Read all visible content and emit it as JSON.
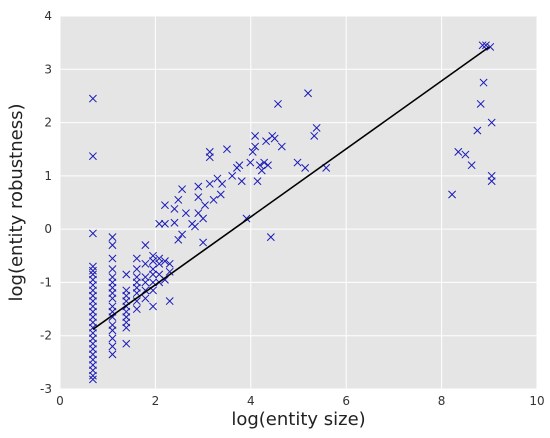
{
  "chart_data": {
    "type": "scatter",
    "xlabel": "log(entity size)",
    "ylabel": "log(entity robustness)",
    "xlim": [
      0,
      10
    ],
    "ylim": [
      -3,
      4
    ],
    "xticks": [
      "0",
      "2",
      "4",
      "6",
      "8",
      "10"
    ],
    "yticks": [
      "-3",
      "-2",
      "-1",
      "0",
      "1",
      "2",
      "3",
      "4"
    ],
    "grid": true,
    "background": "#e5e5e5",
    "marker_color": "#1a1ab8",
    "line_color": "#000000",
    "fit_line": {
      "x": [
        0.69,
        9.0
      ],
      "y": [
        -1.88,
        3.42
      ]
    },
    "points": [
      [
        0.69,
        2.45
      ],
      [
        0.69,
        1.37
      ],
      [
        0.69,
        -0.08
      ],
      [
        0.69,
        -0.7
      ],
      [
        0.69,
        -0.78
      ],
      [
        0.69,
        -0.85
      ],
      [
        0.69,
        -0.95
      ],
      [
        0.69,
        -1.05
      ],
      [
        0.69,
        -1.15
      ],
      [
        0.69,
        -1.25
      ],
      [
        0.69,
        -1.35
      ],
      [
        0.69,
        -1.45
      ],
      [
        0.69,
        -1.55
      ],
      [
        0.69,
        -1.65
      ],
      [
        0.69,
        -1.75
      ],
      [
        0.69,
        -1.85
      ],
      [
        0.69,
        -1.95
      ],
      [
        0.69,
        -2.05
      ],
      [
        0.69,
        -2.15
      ],
      [
        0.69,
        -2.25
      ],
      [
        0.69,
        -2.35
      ],
      [
        0.69,
        -2.45
      ],
      [
        0.69,
        -2.55
      ],
      [
        0.69,
        -2.65
      ],
      [
        0.69,
        -2.75
      ],
      [
        0.69,
        -2.82
      ],
      [
        1.1,
        -0.15
      ],
      [
        1.1,
        -0.3
      ],
      [
        1.1,
        -0.55
      ],
      [
        1.1,
        -0.75
      ],
      [
        1.1,
        -0.9
      ],
      [
        1.1,
        -1.0
      ],
      [
        1.1,
        -1.1
      ],
      [
        1.1,
        -1.2
      ],
      [
        1.1,
        -1.3
      ],
      [
        1.1,
        -1.45
      ],
      [
        1.1,
        -1.55
      ],
      [
        1.1,
        -1.65
      ],
      [
        1.1,
        -1.8
      ],
      [
        1.1,
        -1.9
      ],
      [
        1.1,
        -2.05
      ],
      [
        1.1,
        -2.2
      ],
      [
        1.1,
        -2.35
      ],
      [
        1.39,
        -0.85
      ],
      [
        1.39,
        -1.15
      ],
      [
        1.39,
        -1.25
      ],
      [
        1.39,
        -1.35
      ],
      [
        1.39,
        -1.45
      ],
      [
        1.39,
        -1.55
      ],
      [
        1.39,
        -1.65
      ],
      [
        1.39,
        -1.75
      ],
      [
        1.39,
        -1.85
      ],
      [
        1.39,
        -2.15
      ],
      [
        1.61,
        -0.55
      ],
      [
        1.61,
        -0.75
      ],
      [
        1.61,
        -0.9
      ],
      [
        1.61,
        -1.0
      ],
      [
        1.61,
        -1.1
      ],
      [
        1.61,
        -1.2
      ],
      [
        1.61,
        -1.35
      ],
      [
        1.61,
        -1.5
      ],
      [
        1.79,
        -0.3
      ],
      [
        1.79,
        -0.65
      ],
      [
        1.79,
        -0.9
      ],
      [
        1.79,
        -1.0
      ],
      [
        1.79,
        -1.15
      ],
      [
        1.79,
        -1.3
      ],
      [
        1.95,
        -0.5
      ],
      [
        1.95,
        -0.6
      ],
      [
        1.95,
        -0.75
      ],
      [
        1.95,
        -0.85
      ],
      [
        1.95,
        -1.0
      ],
      [
        1.95,
        -1.15
      ],
      [
        1.95,
        -1.45
      ],
      [
        2.08,
        0.1
      ],
      [
        2.08,
        -0.55
      ],
      [
        2.08,
        -0.65
      ],
      [
        2.08,
        -0.85
      ],
      [
        2.08,
        -1.0
      ],
      [
        2.2,
        0.45
      ],
      [
        2.2,
        0.1
      ],
      [
        2.2,
        -0.6
      ],
      [
        2.2,
        -0.95
      ],
      [
        2.3,
        -0.65
      ],
      [
        2.3,
        -0.8
      ],
      [
        2.3,
        -1.35
      ],
      [
        2.4,
        0.38
      ],
      [
        2.4,
        0.12
      ],
      [
        2.48,
        0.55
      ],
      [
        2.48,
        -0.2
      ],
      [
        2.56,
        0.75
      ],
      [
        2.56,
        -0.1
      ],
      [
        2.64,
        0.3
      ],
      [
        2.77,
        0.1
      ],
      [
        2.83,
        0.05
      ],
      [
        2.9,
        0.8
      ],
      [
        2.9,
        0.6
      ],
      [
        2.9,
        0.3
      ],
      [
        3.0,
        0.2
      ],
      [
        3.0,
        -0.25
      ],
      [
        3.04,
        0.45
      ],
      [
        3.14,
        1.45
      ],
      [
        3.14,
        1.35
      ],
      [
        3.14,
        0.85
      ],
      [
        3.22,
        0.55
      ],
      [
        3.3,
        0.95
      ],
      [
        3.37,
        0.65
      ],
      [
        3.4,
        0.85
      ],
      [
        3.5,
        1.5
      ],
      [
        3.61,
        1.0
      ],
      [
        3.71,
        1.15
      ],
      [
        3.76,
        1.2
      ],
      [
        3.81,
        0.9
      ],
      [
        3.91,
        0.2
      ],
      [
        3.99,
        1.25
      ],
      [
        4.04,
        1.45
      ],
      [
        4.09,
        1.75
      ],
      [
        4.09,
        1.55
      ],
      [
        4.14,
        0.9
      ],
      [
        4.19,
        1.2
      ],
      [
        4.23,
        1.1
      ],
      [
        4.28,
        1.25
      ],
      [
        4.32,
        1.65
      ],
      [
        4.36,
        1.2
      ],
      [
        4.42,
        -0.15
      ],
      [
        4.45,
        1.75
      ],
      [
        4.5,
        1.7
      ],
      [
        4.57,
        2.35
      ],
      [
        4.65,
        1.55
      ],
      [
        4.98,
        1.25
      ],
      [
        5.14,
        1.15
      ],
      [
        5.2,
        2.55
      ],
      [
        5.33,
        1.75
      ],
      [
        5.38,
        1.9
      ],
      [
        5.58,
        1.15
      ],
      [
        8.22,
        0.65
      ],
      [
        8.35,
        1.45
      ],
      [
        8.5,
        1.4
      ],
      [
        8.63,
        1.2
      ],
      [
        8.75,
        1.85
      ],
      [
        8.82,
        2.35
      ],
      [
        8.88,
        2.75
      ],
      [
        8.86,
        3.45
      ],
      [
        8.93,
        3.45
      ],
      [
        9.02,
        3.42
      ],
      [
        9.05,
        2.0
      ],
      [
        9.05,
        1.0
      ],
      [
        9.05,
        0.9
      ]
    ]
  }
}
